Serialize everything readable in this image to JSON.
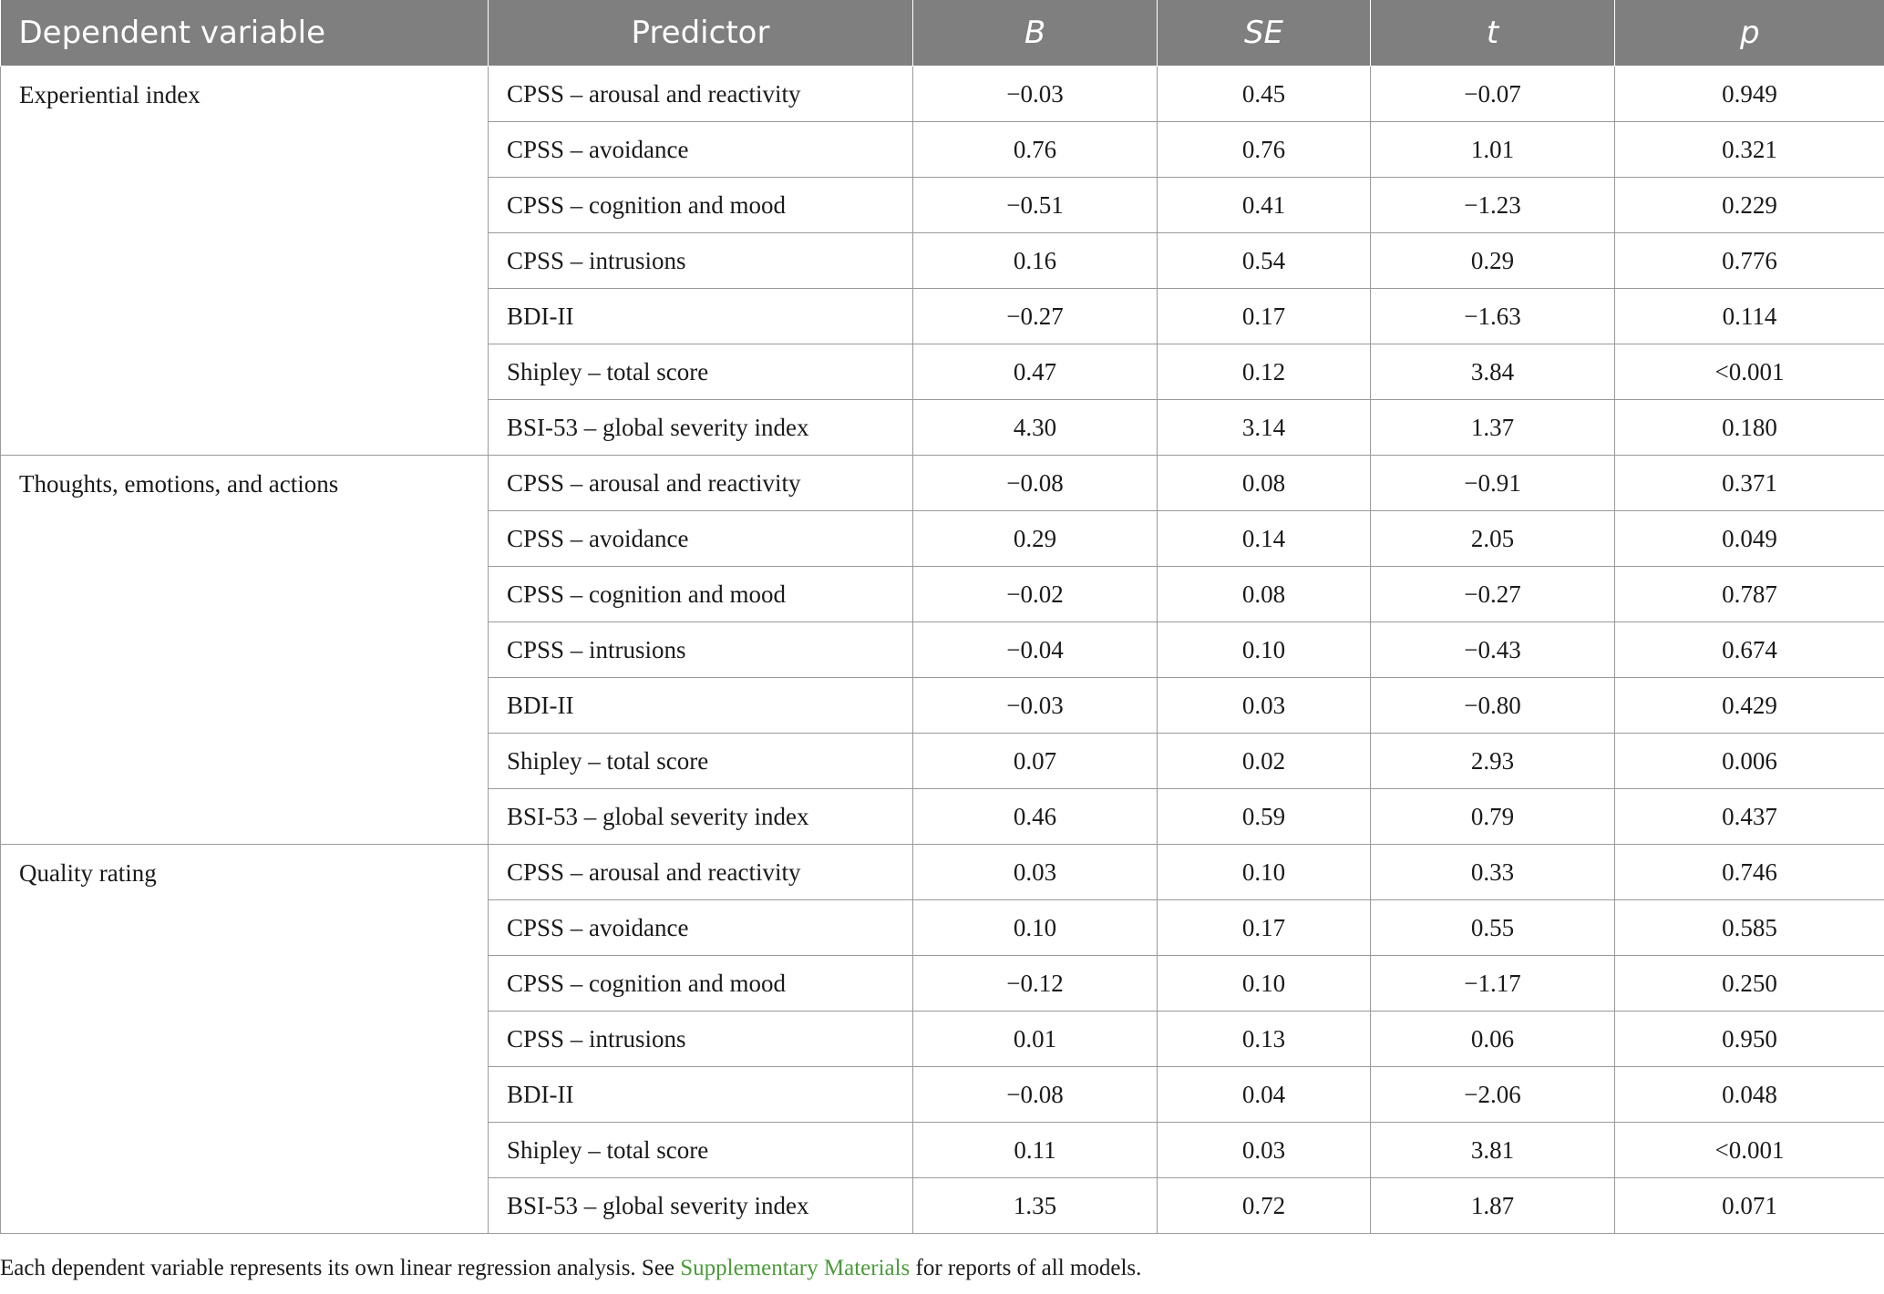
{
  "table": {
    "headers": {
      "dependent": "Dependent variable",
      "predictor": "Predictor",
      "b": "B",
      "se": "SE",
      "t": "t",
      "p": "p"
    },
    "groups": [
      {
        "dependent": "Experiential index",
        "rows": [
          {
            "predictor": "CPSS – arousal and reactivity",
            "b": "−0.03",
            "se": "0.45",
            "t": "−0.07",
            "p": "0.949"
          },
          {
            "predictor": "CPSS – avoidance",
            "b": "0.76",
            "se": "0.76",
            "t": "1.01",
            "p": "0.321"
          },
          {
            "predictor": "CPSS – cognition and mood",
            "b": "−0.51",
            "se": "0.41",
            "t": "−1.23",
            "p": "0.229"
          },
          {
            "predictor": "CPSS – intrusions",
            "b": "0.16",
            "se": "0.54",
            "t": "0.29",
            "p": "0.776"
          },
          {
            "predictor": "BDI-II",
            "b": "−0.27",
            "se": "0.17",
            "t": "−1.63",
            "p": "0.114"
          },
          {
            "predictor": "Shipley – total score",
            "b": "0.47",
            "se": "0.12",
            "t": "3.84",
            "p": "<0.001"
          },
          {
            "predictor": "BSI-53 – global severity index",
            "b": "4.30",
            "se": "3.14",
            "t": "1.37",
            "p": "0.180"
          }
        ]
      },
      {
        "dependent": "Thoughts, emotions, and actions",
        "rows": [
          {
            "predictor": "CPSS – arousal and reactivity",
            "b": "−0.08",
            "se": "0.08",
            "t": "−0.91",
            "p": "0.371"
          },
          {
            "predictor": "CPSS – avoidance",
            "b": "0.29",
            "se": "0.14",
            "t": "2.05",
            "p": "0.049"
          },
          {
            "predictor": "CPSS – cognition and mood",
            "b": "−0.02",
            "se": "0.08",
            "t": "−0.27",
            "p": "0.787"
          },
          {
            "predictor": "CPSS – intrusions",
            "b": "−0.04",
            "se": "0.10",
            "t": "−0.43",
            "p": "0.674"
          },
          {
            "predictor": "BDI-II",
            "b": "−0.03",
            "se": "0.03",
            "t": "−0.80",
            "p": "0.429"
          },
          {
            "predictor": "Shipley – total score",
            "b": "0.07",
            "se": "0.02",
            "t": "2.93",
            "p": "0.006"
          },
          {
            "predictor": "BSI-53 – global severity index",
            "b": "0.46",
            "se": "0.59",
            "t": "0.79",
            "p": "0.437"
          }
        ]
      },
      {
        "dependent": "Quality rating",
        "rows": [
          {
            "predictor": "CPSS – arousal and reactivity",
            "b": "0.03",
            "se": "0.10",
            "t": "0.33",
            "p": "0.746"
          },
          {
            "predictor": "CPSS – avoidance",
            "b": "0.10",
            "se": "0.17",
            "t": "0.55",
            "p": "0.585"
          },
          {
            "predictor": "CPSS – cognition and mood",
            "b": "−0.12",
            "se": "0.10",
            "t": "−1.17",
            "p": "0.250"
          },
          {
            "predictor": "CPSS – intrusions",
            "b": "0.01",
            "se": "0.13",
            "t": "0.06",
            "p": "0.950"
          },
          {
            "predictor": "BDI-II",
            "b": "−0.08",
            "se": "0.04",
            "t": "−2.06",
            "p": "0.048"
          },
          {
            "predictor": "Shipley – total score",
            "b": "0.11",
            "se": "0.03",
            "t": "3.81",
            "p": "<0.001"
          },
          {
            "predictor": "BSI-53 – global severity index",
            "b": "1.35",
            "se": "0.72",
            "t": "1.87",
            "p": "0.071"
          }
        ]
      }
    ]
  },
  "footnote": {
    "before": "Each dependent variable represents its own linear regression analysis. See ",
    "link": "Supplementary Materials",
    "after": " for reports of all models."
  }
}
